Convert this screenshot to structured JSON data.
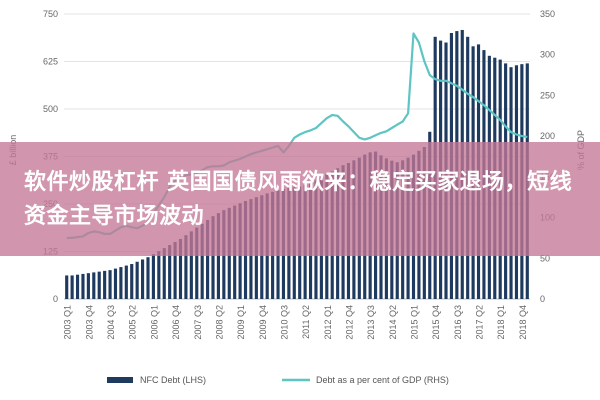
{
  "overlay": {
    "headline": "软件炒股杠杆 英国国债风雨欲来：稳定买家退场，短线资金主导市场波动"
  },
  "chart_data": {
    "type": "bar+line",
    "title": "",
    "left_axis": {
      "label": "£ billion",
      "min": 0,
      "max": 750,
      "ticks": [
        0,
        125,
        250,
        375,
        500,
        625,
        750
      ]
    },
    "right_axis": {
      "label": "% of GDP",
      "min": 0,
      "max": 350,
      "ticks": [
        0,
        50,
        100,
        150,
        200,
        250,
        300,
        350
      ]
    },
    "x_tick_labels": [
      "2003 Q1",
      "2003 Q4",
      "2004 Q3",
      "2005 Q2",
      "2006 Q1",
      "2006 Q4",
      "2007 Q3",
      "2008 Q2",
      "2009 Q1",
      "2009 Q4",
      "2010 Q3",
      "2011 Q2",
      "2012 Q1",
      "2012 Q4",
      "2013 Q3",
      "2014 Q2",
      "2015 Q1",
      "2015 Q4",
      "2016 Q3",
      "2017 Q2",
      "2018 Q1",
      "2018 Q4"
    ],
    "grid": true,
    "legend_position": "bottom",
    "series": [
      {
        "name": "NFC Debt (LHS)",
        "axis": "left",
        "kind": "bar",
        "color": "#1f3a5f",
        "values": [
          62,
          62,
          64,
          66,
          68,
          70,
          72,
          74,
          76,
          80,
          84,
          88,
          92,
          98,
          104,
          110,
          118,
          126,
          134,
          142,
          150,
          158,
          168,
          178,
          188,
          198,
          208,
          218,
          226,
          234,
          240,
          246,
          252,
          258,
          263,
          268,
          273,
          278,
          282,
          286,
          290,
          292,
          294,
          296,
          300,
          305,
          312,
          320,
          328,
          336,
          344,
          352,
          358,
          365,
          372,
          380,
          386,
          388,
          378,
          370,
          364,
          360,
          365,
          372,
          380,
          390,
          400,
          440,
          690,
          680,
          675,
          700,
          705,
          708,
          690,
          665,
          670,
          655,
          640,
          635,
          630,
          620,
          610,
          615,
          618,
          620
        ]
      },
      {
        "name": "Debt as a per cent of GDP (RHS)",
        "axis": "right",
        "kind": "line",
        "color": "#5ec5c4",
        "values": [
          75,
          75,
          76,
          77,
          81,
          83,
          82,
          80,
          80,
          84,
          88,
          90,
          88,
          87,
          90,
          95,
          105,
          115,
          125,
          138,
          145,
          150,
          152,
          153,
          155,
          158,
          162,
          163,
          163,
          164,
          168,
          170,
          172,
          175,
          178,
          180,
          182,
          184,
          186,
          188,
          180,
          188,
          198,
          202,
          205,
          207,
          210,
          216,
          222,
          226,
          225,
          218,
          212,
          205,
          198,
          196,
          198,
          201,
          204,
          206,
          210,
          214,
          218,
          228,
          326,
          315,
          292,
          275,
          270,
          268,
          268,
          265,
          262,
          257,
          252,
          248,
          243,
          238,
          232,
          226,
          220,
          212,
          205,
          202,
          200,
          199
        ]
      }
    ]
  }
}
